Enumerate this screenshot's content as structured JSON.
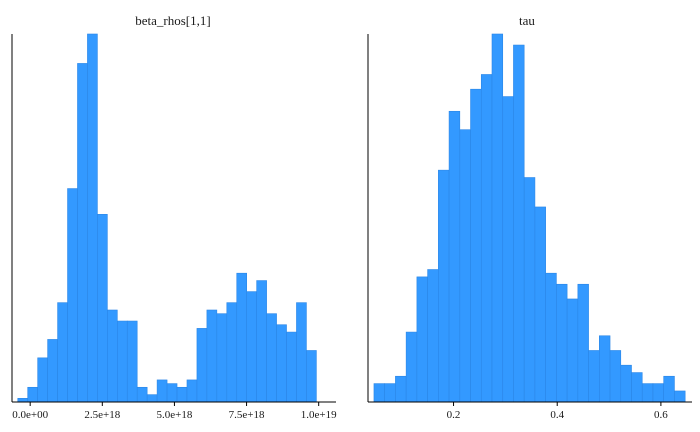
{
  "chart_data": [
    {
      "type": "bar",
      "subtype": "histogram",
      "title": "beta_rhos[1,1]",
      "xlabel": "",
      "ylabel": "",
      "bin_width": 3.45e+17,
      "x_ticks": [
        0,
        2.5e+18,
        5e+18,
        7.5e+18,
        1e+19
      ],
      "x_tick_labels": [
        "0.0e+00",
        "2.5e+18",
        "5.0e+18",
        "7.5e+18",
        "1.0e+19"
      ],
      "xlim": [
        -6.3e+17,
        1.06e+19
      ],
      "bins_left": [
        -4.3e+17,
        -8.5e+16,
        2.6e+17,
        6.05e+17,
        9.5e+17,
        1.295e+18,
        1.64e+18,
        1.985e+18,
        2.33e+18,
        2.675e+18,
        3.02e+18,
        3.365e+18,
        3.71e+18,
        4.055e+18,
        4.4e+18,
        4.745e+18,
        5.09e+18,
        5.435e+18,
        5.78e+18,
        6.125e+18,
        6.47e+18,
        6.815e+18,
        7.16e+18,
        7.505e+18,
        7.85e+18,
        8.195e+18,
        8.54e+18,
        8.885e+18,
        9.23e+18,
        9.575e+18
      ],
      "values": [
        1,
        4,
        12,
        17,
        27,
        58,
        92,
        100,
        51,
        25,
        22,
        22,
        4,
        2,
        6,
        5,
        4,
        6,
        20,
        25,
        24,
        27,
        35,
        30,
        33,
        24,
        21,
        19,
        27,
        14
      ],
      "ylim": [
        0,
        100
      ],
      "grid": false,
      "color": "#3399ff"
    },
    {
      "type": "bar",
      "subtype": "histogram",
      "title": "tau",
      "xlabel": "",
      "ylabel": "",
      "bin_width": 0.0207,
      "x_ticks": [
        0.2,
        0.4,
        0.6
      ],
      "x_tick_labels": [
        "0.2",
        "0.4",
        "0.6"
      ],
      "xlim": [
        0.035,
        0.66
      ],
      "bins_left": [
        0.0465,
        0.0672,
        0.0879,
        0.1086,
        0.1293,
        0.15,
        0.1707,
        0.1914,
        0.2121,
        0.2328,
        0.2535,
        0.2742,
        0.2949,
        0.3156,
        0.3363,
        0.357,
        0.3777,
        0.3984,
        0.4191,
        0.4398,
        0.4605,
        0.4812,
        0.5019,
        0.5226,
        0.5433,
        0.564,
        0.5847,
        0.6054,
        0.6261
      ],
      "values": [
        5,
        5,
        7,
        19,
        34,
        36,
        63,
        79,
        74,
        85,
        89,
        100,
        83,
        97,
        61,
        53,
        35,
        32,
        28,
        32,
        14,
        18,
        14,
        10,
        8,
        5,
        5,
        7,
        3
      ],
      "ylim": [
        0,
        100
      ],
      "grid": false,
      "color": "#3399ff"
    }
  ]
}
